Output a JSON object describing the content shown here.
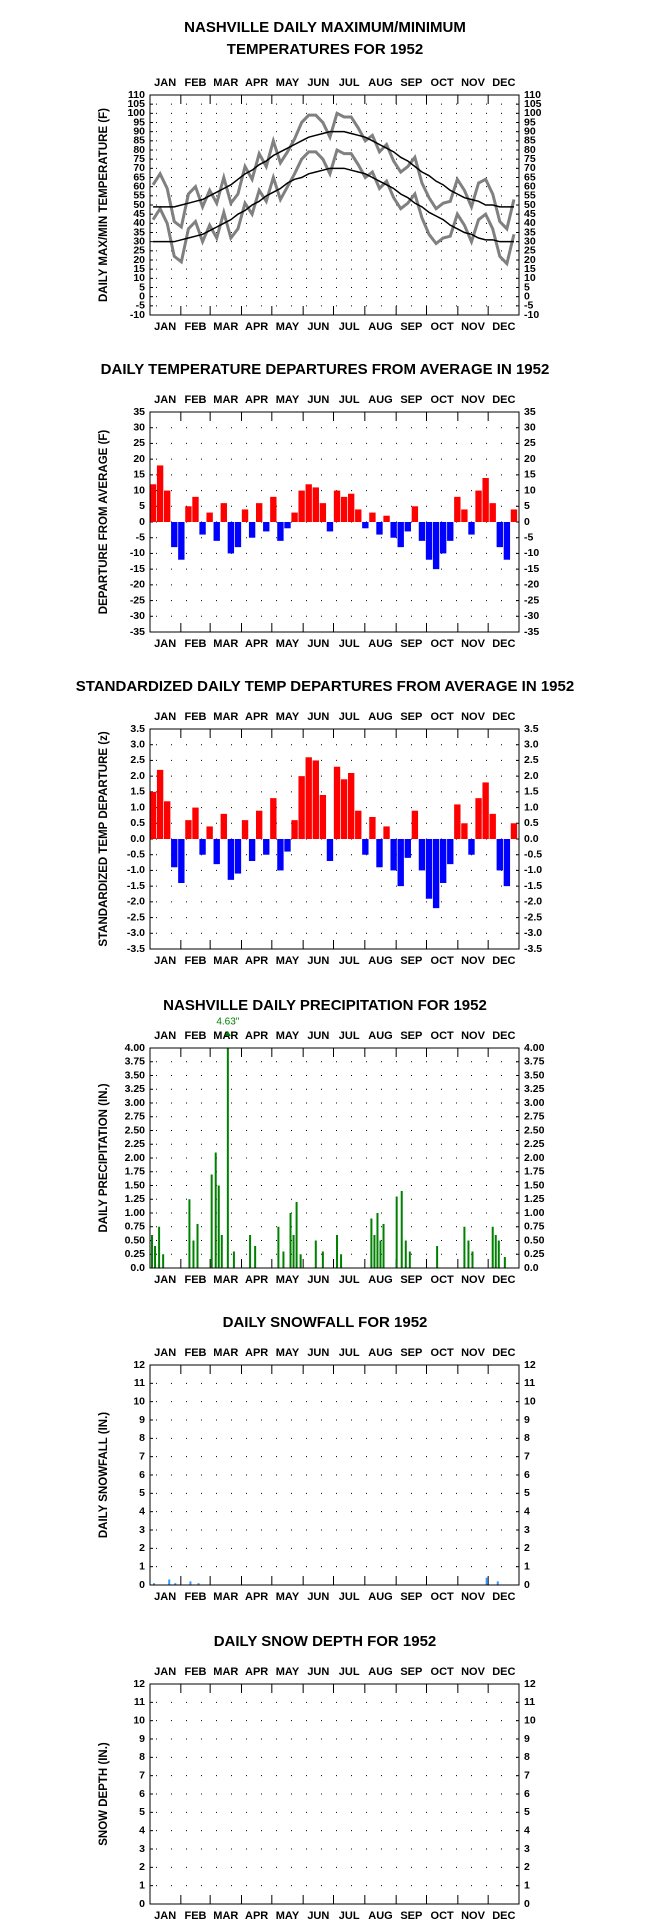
{
  "chart_data": [
    {
      "type": "line",
      "title": [
        "NASHVILLE DAILY MAXIMUM/MINIMUM",
        "TEMPERATURES FOR 1952"
      ],
      "ylabel": "DAILY MAX/MIN TEMPERATURE (F)",
      "categories": [
        "JAN",
        "FEB",
        "MAR",
        "APR",
        "MAY",
        "JUN",
        "JUL",
        "AUG",
        "SEP",
        "OCT",
        "NOV",
        "DEC"
      ],
      "x": [
        4,
        11,
        18,
        25,
        32,
        39,
        46,
        53,
        60,
        67,
        74,
        81,
        88,
        95,
        102,
        109,
        116,
        123,
        130,
        137,
        144,
        151,
        158,
        165,
        172,
        179,
        186,
        193,
        200,
        207,
        214,
        221,
        228,
        235,
        242,
        249,
        256,
        263,
        270,
        277,
        284,
        291,
        298,
        305,
        312,
        319,
        326,
        333,
        340,
        347,
        354,
        361
      ],
      "xlim": [
        1,
        366
      ],
      "series": [
        {
          "color": "#808080",
          "values": [
            61,
            67,
            59,
            41,
            38,
            56,
            60,
            49,
            58,
            51,
            65,
            51,
            56,
            71,
            64,
            78,
            71,
            85,
            73,
            79,
            86,
            95,
            99,
            99,
            95,
            87,
            100,
            98,
            98,
            92,
            85,
            88,
            79,
            83,
            74,
            68,
            71,
            76,
            62,
            54,
            48,
            51,
            52,
            64,
            58,
            49,
            62,
            64,
            56,
            41,
            37,
            53
          ]
        },
        {
          "color": "#808080",
          "values": [
            42,
            48,
            40,
            22,
            19,
            37,
            41,
            30,
            39,
            32,
            46,
            32,
            37,
            51,
            45,
            58,
            52,
            65,
            53,
            60,
            67,
            75,
            79,
            79,
            75,
            67,
            80,
            78,
            78,
            72,
            65,
            68,
            59,
            63,
            54,
            48,
            51,
            56,
            43,
            34,
            29,
            32,
            33,
            45,
            39,
            30,
            42,
            45,
            37,
            22,
            18,
            34
          ]
        },
        {
          "color": "#000000",
          "values": [
            49,
            49,
            49,
            49,
            50,
            51,
            52,
            53,
            55,
            57,
            59,
            61,
            64,
            67,
            69,
            72,
            74,
            77,
            79,
            81,
            83,
            85,
            87,
            88,
            89,
            90,
            90,
            90,
            89,
            88,
            87,
            85,
            83,
            81,
            79,
            76,
            74,
            71,
            68,
            66,
            63,
            61,
            58,
            56,
            54,
            53,
            52,
            50,
            50,
            49,
            49,
            49
          ]
        },
        {
          "color": "#000000",
          "values": [
            30,
            30,
            30,
            30,
            31,
            32,
            33,
            34,
            36,
            38,
            40,
            42,
            45,
            47,
            50,
            52,
            55,
            57,
            59,
            62,
            64,
            65,
            67,
            68,
            69,
            70,
            70,
            70,
            69,
            68,
            67,
            65,
            63,
            61,
            59,
            56,
            54,
            51,
            49,
            46,
            44,
            42,
            39,
            37,
            35,
            34,
            32,
            31,
            31,
            30,
            30,
            30
          ]
        }
      ],
      "ylim": [
        -10,
        110
      ],
      "yticks": [
        -10,
        -5,
        0,
        5,
        10,
        15,
        20,
        25,
        30,
        35,
        40,
        45,
        50,
        55,
        60,
        65,
        70,
        75,
        80,
        85,
        90,
        95,
        100,
        105,
        110
      ],
      "grid": true
    },
    {
      "type": "bar",
      "title": "DAILY TEMPERATURE DEPARTURES FROM AVERAGE IN 1952",
      "ylabel": "DEPARTURE FROM AVERAGE (F)",
      "categories": [
        "JAN",
        "FEB",
        "MAR",
        "APR",
        "MAY",
        "JUN",
        "JUL",
        "AUG",
        "SEP",
        "OCT",
        "NOV",
        "DEC"
      ],
      "x": [
        4,
        11,
        18,
        25,
        32,
        39,
        46,
        53,
        60,
        67,
        74,
        81,
        88,
        95,
        102,
        109,
        116,
        123,
        130,
        137,
        144,
        151,
        158,
        165,
        172,
        179,
        186,
        193,
        200,
        207,
        214,
        221,
        228,
        235,
        242,
        249,
        256,
        263,
        270,
        277,
        284,
        291,
        298,
        305,
        312,
        319,
        326,
        333,
        340,
        347,
        354,
        361
      ],
      "xlim": [
        1,
        366
      ],
      "values": [
        12,
        18,
        10,
        -8,
        -12,
        5,
        8,
        -4,
        3,
        -6,
        6,
        -10,
        -8,
        4,
        -5,
        6,
        -3,
        8,
        -6,
        -2,
        3,
        10,
        12,
        11,
        6,
        -3,
        10,
        8,
        9,
        4,
        -2,
        3,
        -4,
        2,
        -5,
        -8,
        -3,
        5,
        -6,
        -12,
        -15,
        -10,
        -6,
        8,
        4,
        -4,
        10,
        14,
        6,
        -8,
        -12,
        4
      ],
      "color_above": "#ff0000",
      "color_below": "#0000ff",
      "ylim": [
        -35,
        35
      ],
      "yticks": [
        -35,
        -30,
        -25,
        -20,
        -15,
        -10,
        -5,
        0,
        5,
        10,
        15,
        20,
        25,
        30,
        35
      ],
      "grid": true
    },
    {
      "type": "bar",
      "title": "STANDARDIZED DAILY TEMP DEPARTURES FROM AVERAGE IN 1952",
      "ylabel": "STANDARDIZED TEMP DEPARTURE (z)",
      "categories": [
        "JAN",
        "FEB",
        "MAR",
        "APR",
        "MAY",
        "JUN",
        "JUL",
        "AUG",
        "SEP",
        "OCT",
        "NOV",
        "DEC"
      ],
      "x": [
        4,
        11,
        18,
        25,
        32,
        39,
        46,
        53,
        60,
        67,
        74,
        81,
        88,
        95,
        102,
        109,
        116,
        123,
        130,
        137,
        144,
        151,
        158,
        165,
        172,
        179,
        186,
        193,
        200,
        207,
        214,
        221,
        228,
        235,
        242,
        249,
        256,
        263,
        270,
        277,
        284,
        291,
        298,
        305,
        312,
        319,
        326,
        333,
        340,
        347,
        354,
        361
      ],
      "xlim": [
        1,
        366
      ],
      "values": [
        1.5,
        2.2,
        1.2,
        -0.9,
        -1.4,
        0.6,
        1.0,
        -0.5,
        0.4,
        -0.8,
        0.8,
        -1.3,
        -1.1,
        0.6,
        -0.7,
        0.9,
        -0.5,
        1.3,
        -1.0,
        -0.4,
        0.6,
        2.0,
        2.6,
        2.5,
        1.4,
        -0.7,
        2.3,
        1.9,
        2.1,
        0.9,
        -0.5,
        0.7,
        -0.9,
        0.4,
        -1.0,
        -1.5,
        -0.6,
        0.9,
        -1.0,
        -1.9,
        -2.2,
        -1.4,
        -0.8,
        1.1,
        0.5,
        -0.5,
        1.3,
        1.8,
        0.8,
        -1.0,
        -1.5,
        0.5
      ],
      "color_above": "#ff0000",
      "color_below": "#0000ff",
      "ylim": [
        -3.5,
        3.5
      ],
      "yticks": [
        -3.5,
        {
          "value": -3,
          "label": "-3.0"
        },
        -2.5,
        {
          "value": -2,
          "label": "-2.0"
        },
        -1.5,
        {
          "value": -1,
          "label": "-1.0"
        },
        -0.5,
        {
          "value": 0,
          "label": "0.0"
        },
        0.5,
        {
          "value": 1,
          "label": "1.0"
        },
        1.5,
        {
          "value": 2,
          "label": "2.0"
        },
        2.5,
        {
          "value": 3,
          "label": "3.0"
        },
        3.5
      ],
      "grid": true
    },
    {
      "type": "bar",
      "title": "NASHVILLE DAILY PRECIPITATION FOR 1952",
      "ylabel": "DAILY PRECIPITATION (IN.)",
      "categories": [
        "JAN",
        "FEB",
        "MAR",
        "APR",
        "MAY",
        "JUN",
        "JUL",
        "AUG",
        "SEP",
        "OCT",
        "NOV",
        "DEC"
      ],
      "x": [
        3,
        6,
        10,
        14,
        40,
        44,
        48,
        62,
        66,
        69,
        72,
        78,
        84,
        100,
        105,
        128,
        133,
        140,
        143,
        146,
        150,
        165,
        172,
        186,
        190,
        220,
        223,
        226,
        229,
        232,
        245,
        250,
        254,
        258,
        285,
        312,
        316,
        320,
        340,
        343,
        346,
        352
      ],
      "xlim": [
        1,
        366
      ],
      "values": [
        0.6,
        0.4,
        0.75,
        0.25,
        1.25,
        0.5,
        0.8,
        1.7,
        2.1,
        1.5,
        0.6,
        4.63,
        0.3,
        0.6,
        0.4,
        0.75,
        0.3,
        1.0,
        0.6,
        1.2,
        0.25,
        0.5,
        0.3,
        0.6,
        0.25,
        0.9,
        0.6,
        1.0,
        0.5,
        0.8,
        1.3,
        1.4,
        0.5,
        0.3,
        0.4,
        0.75,
        0.5,
        0.3,
        0.75,
        0.6,
        0.5,
        0.2
      ],
      "value_labels": [
        null,
        null,
        null,
        null,
        null,
        null,
        null,
        null,
        null,
        null,
        null,
        "4.63\"",
        null,
        null,
        null,
        null,
        null,
        null,
        null,
        null,
        null,
        null,
        null,
        null,
        null,
        null,
        null,
        null,
        null,
        null,
        null,
        null,
        null,
        null,
        null,
        null,
        null,
        null,
        null,
        null,
        null,
        null
      ],
      "color": "#008000",
      "ylim": [
        0,
        4
      ],
      "yticks": [
        {
          "value": 0,
          "label": "0.0"
        },
        0.25,
        {
          "value": 0.5,
          "label": "0.50"
        },
        0.75,
        {
          "value": 1,
          "label": "1.00"
        },
        1.25,
        {
          "value": 1.5,
          "label": "1.50"
        },
        1.75,
        {
          "value": 2,
          "label": "2.00"
        },
        2.25,
        {
          "value": 2.5,
          "label": "2.50"
        },
        2.75,
        {
          "value": 3,
          "label": "3.00"
        },
        3.25,
        {
          "value": 3.5,
          "label": "3.50"
        },
        3.75,
        {
          "value": 4,
          "label": "4.00"
        }
      ],
      "grid": true
    },
    {
      "type": "bar",
      "title": "DAILY SNOWFALL FOR 1952",
      "ylabel": "DAILY SNOWFALL (IN.)",
      "categories": [
        "JAN",
        "FEB",
        "MAR",
        "APR",
        "MAY",
        "JUN",
        "JUL",
        "AUG",
        "SEP",
        "OCT",
        "NOV",
        "DEC"
      ],
      "x": [
        5,
        20,
        26,
        41,
        49,
        334,
        345
      ],
      "xlim": [
        1,
        366
      ],
      "values": [
        0.1,
        0.3,
        0.1,
        0.2,
        0.1,
        0.4,
        0.2
      ],
      "color": "#3399ff",
      "ylim": [
        0,
        12
      ],
      "yticks": [
        0,
        1,
        2,
        3,
        4,
        5,
        6,
        7,
        8,
        9,
        10,
        11,
        12
      ],
      "grid": true
    },
    {
      "type": "bar",
      "title": "DAILY SNOW DEPTH FOR 1952",
      "ylabel": "SNOW DEPTH (IN.)",
      "categories": [
        "JAN",
        "FEB",
        "MAR",
        "APR",
        "MAY",
        "JUN",
        "JUL",
        "AUG",
        "SEP",
        "OCT",
        "NOV",
        "DEC"
      ],
      "x": [],
      "xlim": [
        1,
        366
      ],
      "values": [],
      "color": "#3399ff",
      "ylim": [
        0,
        12
      ],
      "yticks": [
        0,
        1,
        2,
        3,
        4,
        5,
        6,
        7,
        8,
        9,
        10,
        11,
        12
      ],
      "grid": true
    }
  ]
}
